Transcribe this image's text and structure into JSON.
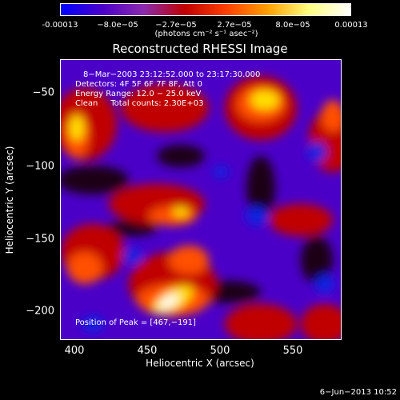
{
  "colorbar": {
    "ticks": [
      "-0.00013",
      "−8.0e−05",
      "−2.7e−05",
      "2.7e−05",
      "8.0e−05",
      "0.00013"
    ],
    "units": "(photons cm⁻² s⁻¹ asec⁻²)",
    "colors": [
      "#0000ff",
      "#4b00c8",
      "#8b2ab0",
      "#c00000",
      "#ff4000",
      "#ffa000",
      "#ffff80",
      "#ffffff"
    ]
  },
  "plot": {
    "title": "Reconstructed RHESSI Image",
    "info_lines": [
      "8−Mar−2003 23:12:52.000 to 23:17:30.000",
      "Detectors: 4F 5F 6F 7F 8F, Att 0",
      "Energy Range: 12.0 − 25.0 keV",
      "Clean     Total counts: 2.30E+03"
    ],
    "peak_label": "Position of Peak = [467,−191]",
    "xlabel": "Heliocentric X (arcsec)",
    "ylabel": "Heliocentric Y (arcsec)",
    "xticks": [
      "400",
      "450",
      "500",
      "550"
    ],
    "yticks": [
      "−50",
      "−100",
      "−150",
      "−200"
    ]
  },
  "footer": {
    "date": "6−Jun−2013 10:52"
  }
}
